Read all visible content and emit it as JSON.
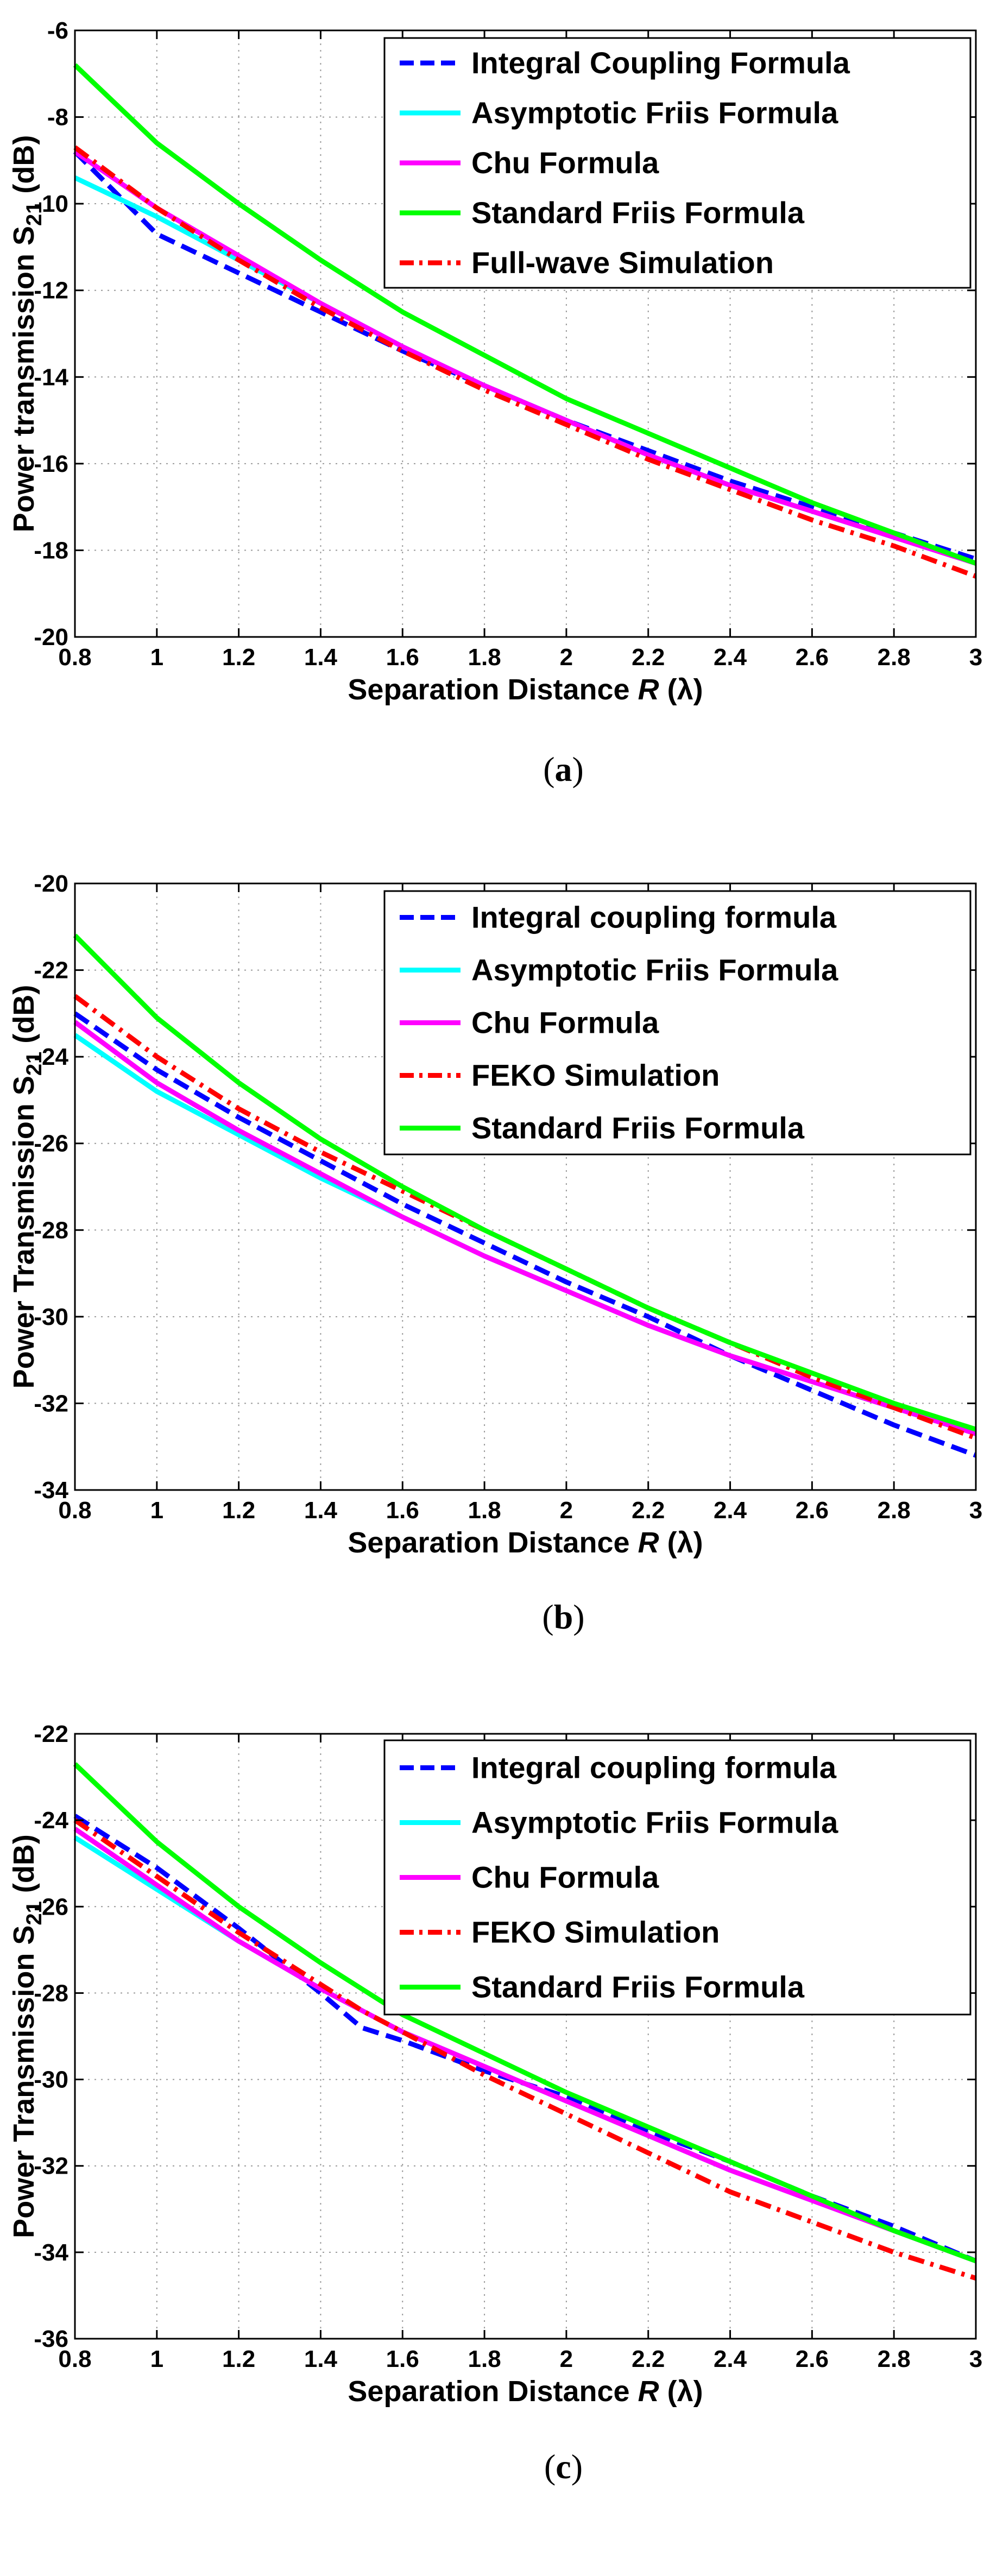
{
  "chart_data": [
    {
      "type": "line",
      "panel": "a",
      "caption_letter": "a",
      "xlabel": "Separation Distance",
      "xvar": "R",
      "xunit": "(λ)",
      "ylabel": "Power transmission S",
      "ysub": "21",
      "yunit": "(dB)",
      "xlim": [
        0.8,
        3
      ],
      "ylim": [
        -20,
        -6
      ],
      "xticks": [
        0.8,
        1,
        1.2,
        1.4,
        1.6,
        1.8,
        2,
        2.2,
        2.4,
        2.6,
        2.8,
        3
      ],
      "yticks": [
        -20,
        -18,
        -16,
        -14,
        -12,
        -10,
        -8,
        -6
      ],
      "grid": true,
      "legend_position": "top-right",
      "x": [
        0.8,
        1.0,
        1.2,
        1.4,
        1.6,
        1.8,
        2.0,
        2.2,
        2.4,
        2.6,
        2.8,
        3.0
      ],
      "series": [
        {
          "name": "Integral Coupling Formula",
          "color": "#0000ff",
          "style": "dashed",
          "values": [
            -8.8,
            -10.7,
            -11.6,
            -12.5,
            -13.4,
            -14.2,
            -15.0,
            -15.7,
            -16.4,
            -17.0,
            -17.6,
            -18.2
          ]
        },
        {
          "name": "Asymptotic Friis Formula",
          "color": "#00ffff",
          "style": "solid",
          "values": [
            -9.4,
            -10.3,
            -11.3,
            -12.3,
            -13.3,
            -14.2,
            -15.0,
            -15.8,
            -16.5,
            -17.1,
            -17.7,
            -18.3
          ]
        },
        {
          "name": "Chu Formula",
          "color": "#ff00ff",
          "style": "solid",
          "values": [
            -8.8,
            -10.1,
            -11.2,
            -12.3,
            -13.3,
            -14.2,
            -15.0,
            -15.8,
            -16.5,
            -17.1,
            -17.7,
            -18.3
          ]
        },
        {
          "name": "Standard Friis Formula",
          "color": "#00ff00",
          "style": "solid",
          "values": [
            -6.8,
            -8.6,
            -10.0,
            -11.3,
            -12.5,
            -13.5,
            -14.5,
            -15.3,
            -16.1,
            -16.9,
            -17.6,
            -18.3
          ]
        },
        {
          "name": "Full-wave Simulation",
          "color": "#ff0000",
          "style": "dashdot",
          "values": [
            -8.7,
            -10.1,
            -11.3,
            -12.4,
            -13.4,
            -14.3,
            -15.1,
            -15.9,
            -16.6,
            -17.3,
            -17.9,
            -18.6
          ]
        }
      ]
    },
    {
      "type": "line",
      "panel": "b",
      "caption_letter": "b",
      "xlabel": "Separation Distance",
      "xvar": "R",
      "xunit": "(λ)",
      "ylabel": "Power Transmission S",
      "ysub": "21",
      "yunit": "(dB)",
      "xlim": [
        0.8,
        3
      ],
      "ylim": [
        -34,
        -20
      ],
      "xticks": [
        0.8,
        1,
        1.2,
        1.4,
        1.6,
        1.8,
        2,
        2.2,
        2.4,
        2.6,
        2.8,
        3
      ],
      "yticks": [
        -34,
        -32,
        -30,
        -28,
        -26,
        -24,
        -22,
        -20
      ],
      "grid": true,
      "legend_position": "top-right",
      "x": [
        0.8,
        1.0,
        1.2,
        1.4,
        1.6,
        1.8,
        2.0,
        2.2,
        2.4,
        2.6,
        2.8,
        3.0
      ],
      "series": [
        {
          "name": "Integral coupling formula",
          "color": "#0000ff",
          "style": "dashed",
          "values": [
            -23.0,
            -24.3,
            -25.4,
            -26.4,
            -27.4,
            -28.3,
            -29.2,
            -30.0,
            -30.9,
            -31.7,
            -32.5,
            -33.2
          ]
        },
        {
          "name": "Asymptotic Friis Formula",
          "color": "#00ffff",
          "style": "solid",
          "values": [
            -23.5,
            -24.8,
            -25.8,
            -26.8,
            -27.7,
            -28.6,
            -29.4,
            -30.2,
            -30.9,
            -31.5,
            -32.1,
            -32.7
          ]
        },
        {
          "name": "Chu Formula",
          "color": "#ff00ff",
          "style": "solid",
          "values": [
            -23.2,
            -24.6,
            -25.7,
            -26.7,
            -27.7,
            -28.6,
            -29.4,
            -30.2,
            -30.9,
            -31.5,
            -32.1,
            -32.7
          ]
        },
        {
          "name": "FEKO Simulation",
          "color": "#ff0000",
          "style": "dashdot",
          "values": [
            -22.6,
            -24.0,
            -25.2,
            -26.2,
            -27.1,
            -28.0,
            -28.9,
            -29.8,
            -30.6,
            -31.4,
            -32.1,
            -32.8
          ]
        },
        {
          "name": "Standard Friis Formula",
          "color": "#00ff00",
          "style": "solid",
          "values": [
            -21.2,
            -23.1,
            -24.6,
            -25.9,
            -27.0,
            -28.0,
            -28.9,
            -29.8,
            -30.6,
            -31.3,
            -32.0,
            -32.6
          ]
        }
      ]
    },
    {
      "type": "line",
      "panel": "c",
      "caption_letter": "c",
      "xlabel": "Separation Distance",
      "xvar": "R",
      "xunit": "(λ)",
      "ylabel": "Power Transmission S",
      "ysub": "21",
      "yunit": "(dB)",
      "xlim": [
        0.8,
        3
      ],
      "ylim": [
        -36,
        -22
      ],
      "xticks": [
        0.8,
        1,
        1.2,
        1.4,
        1.6,
        1.8,
        2,
        2.2,
        2.4,
        2.6,
        2.8,
        3
      ],
      "yticks": [
        -36,
        -34,
        -32,
        -30,
        -28,
        -26,
        -24,
        -22
      ],
      "grid": true,
      "legend_position": "top-right",
      "x": [
        0.8,
        1.0,
        1.2,
        1.4,
        1.5,
        1.6,
        1.8,
        2.0,
        2.2,
        2.4,
        2.6,
        2.8,
        3.0
      ],
      "series": [
        {
          "name": "Integral coupling formula",
          "color": "#0000ff",
          "style": "dashed",
          "values": [
            -23.9,
            -25.1,
            -26.5,
            -28.0,
            -28.8,
            -29.1,
            -29.8,
            -30.4,
            -31.2,
            -31.9,
            -32.7,
            -33.4,
            -34.2
          ]
        },
        {
          "name": "Asymptotic Friis Formula",
          "color": "#00ffff",
          "style": "solid",
          "values": [
            -24.4,
            -25.6,
            -26.8,
            -27.9,
            -28.4,
            -28.9,
            -29.7,
            -30.5,
            -31.3,
            -32.1,
            -32.8,
            -33.5,
            -34.2
          ]
        },
        {
          "name": "Chu Formula",
          "color": "#ff00ff",
          "style": "solid",
          "values": [
            -24.2,
            -25.5,
            -26.8,
            -27.9,
            -28.4,
            -28.9,
            -29.7,
            -30.5,
            -31.3,
            -32.1,
            -32.8,
            -33.5,
            -34.2
          ]
        },
        {
          "name": "FEKO Simulation",
          "color": "#ff0000",
          "style": "dashdot",
          "values": [
            -24.0,
            -25.3,
            -26.6,
            -27.8,
            -28.4,
            -28.9,
            -29.9,
            -30.8,
            -31.7,
            -32.6,
            -33.3,
            -34.0,
            -34.6
          ]
        },
        {
          "name": "Standard Friis Formula",
          "color": "#00ff00",
          "style": "solid",
          "values": [
            -22.7,
            -24.5,
            -26.0,
            -27.3,
            -27.9,
            -28.5,
            -29.4,
            -30.3,
            -31.1,
            -31.9,
            -32.7,
            -33.5,
            -34.2
          ]
        }
      ]
    }
  ]
}
